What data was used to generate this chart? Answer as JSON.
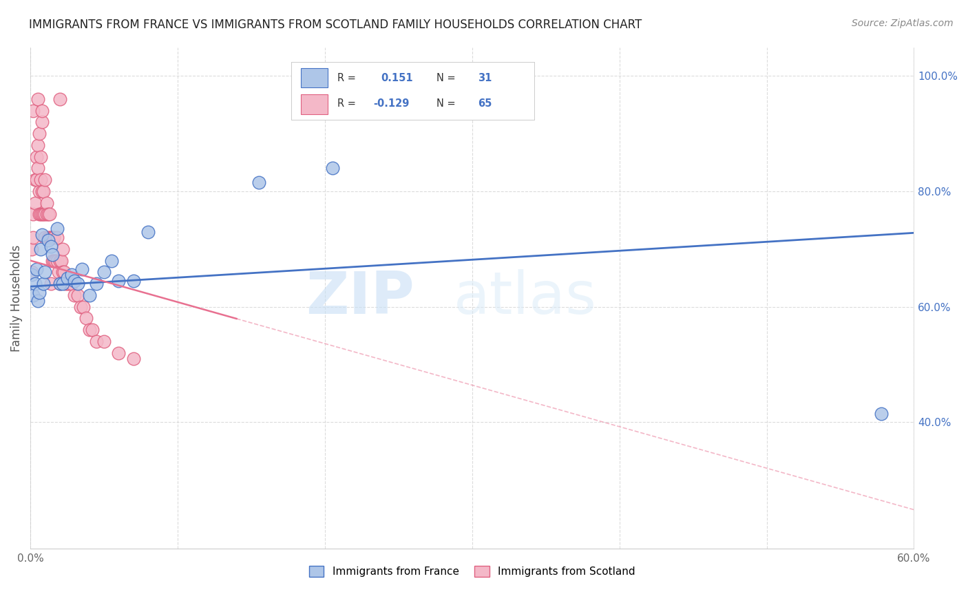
{
  "title": "IMMIGRANTS FROM FRANCE VS IMMIGRANTS FROM SCOTLAND FAMILY HOUSEHOLDS CORRELATION CHART",
  "source": "Source: ZipAtlas.com",
  "ylabel": "Family Households",
  "xlim": [
    0.0,
    0.6
  ],
  "ylim": [
    0.18,
    1.05
  ],
  "x_ticks": [
    0.0,
    0.1,
    0.2,
    0.3,
    0.4,
    0.5,
    0.6
  ],
  "x_tick_labels": [
    "0.0%",
    "",
    "",
    "",
    "",
    "",
    "60.0%"
  ],
  "y_ticks_right": [
    0.4,
    0.6,
    0.8,
    1.0
  ],
  "y_tick_labels_right": [
    "40.0%",
    "60.0%",
    "80.0%",
    "100.0%"
  ],
  "france_color": "#aec6e8",
  "france_edge_color": "#4472c4",
  "scotland_color": "#f4b8c8",
  "scotland_edge_color": "#e06080",
  "france_line_color": "#4472c4",
  "scotland_line_color": "#e87090",
  "france_scatter_x": [
    0.001,
    0.002,
    0.003,
    0.004,
    0.005,
    0.006,
    0.007,
    0.008,
    0.009,
    0.01,
    0.012,
    0.014,
    0.015,
    0.018,
    0.02,
    0.022,
    0.025,
    0.028,
    0.03,
    0.032,
    0.035,
    0.04,
    0.045,
    0.05,
    0.055,
    0.06,
    0.07,
    0.08,
    0.155,
    0.205,
    0.578
  ],
  "france_scatter_y": [
    0.655,
    0.62,
    0.64,
    0.665,
    0.61,
    0.625,
    0.7,
    0.725,
    0.64,
    0.66,
    0.715,
    0.705,
    0.69,
    0.735,
    0.64,
    0.64,
    0.65,
    0.655,
    0.645,
    0.64,
    0.665,
    0.62,
    0.64,
    0.66,
    0.68,
    0.645,
    0.645,
    0.73,
    0.815,
    0.84,
    0.415
  ],
  "scotland_scatter_x": [
    0.001,
    0.001,
    0.002,
    0.002,
    0.003,
    0.003,
    0.004,
    0.004,
    0.005,
    0.005,
    0.006,
    0.006,
    0.006,
    0.007,
    0.007,
    0.007,
    0.008,
    0.008,
    0.008,
    0.009,
    0.009,
    0.01,
    0.01,
    0.01,
    0.011,
    0.011,
    0.012,
    0.012,
    0.013,
    0.013,
    0.014,
    0.015,
    0.015,
    0.016,
    0.016,
    0.017,
    0.018,
    0.018,
    0.019,
    0.02,
    0.02,
    0.021,
    0.022,
    0.022,
    0.023,
    0.024,
    0.025,
    0.026,
    0.028,
    0.03,
    0.032,
    0.034,
    0.036,
    0.038,
    0.04,
    0.042,
    0.045,
    0.05,
    0.06,
    0.07,
    0.002,
    0.005,
    0.008,
    0.014,
    0.02
  ],
  "scotland_scatter_y": [
    0.66,
    0.7,
    0.72,
    0.76,
    0.78,
    0.82,
    0.82,
    0.86,
    0.84,
    0.88,
    0.76,
    0.8,
    0.9,
    0.76,
    0.82,
    0.86,
    0.76,
    0.8,
    0.92,
    0.76,
    0.8,
    0.76,
    0.72,
    0.82,
    0.76,
    0.78,
    0.72,
    0.76,
    0.76,
    0.72,
    0.72,
    0.72,
    0.68,
    0.72,
    0.68,
    0.68,
    0.72,
    0.68,
    0.66,
    0.64,
    0.68,
    0.68,
    0.66,
    0.7,
    0.66,
    0.64,
    0.64,
    0.64,
    0.64,
    0.62,
    0.62,
    0.6,
    0.6,
    0.58,
    0.56,
    0.56,
    0.54,
    0.54,
    0.52,
    0.51,
    0.94,
    0.96,
    0.94,
    0.64,
    0.96
  ],
  "watermark_zip": "ZIP",
  "watermark_atlas": "atlas",
  "legend_france_label": "Immigrants from France",
  "legend_scotland_label": "Immigrants from Scotland",
  "background_color": "#ffffff",
  "grid_color": "#d8d8d8",
  "title_fontsize": 12,
  "source_fontsize": 10,
  "tick_fontsize": 11
}
